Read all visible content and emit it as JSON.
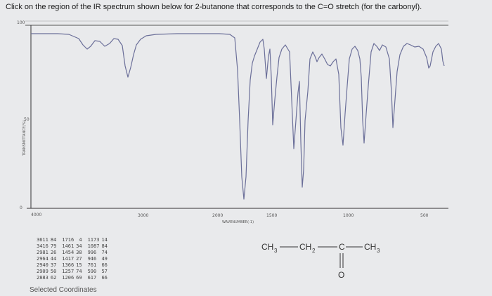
{
  "question": {
    "text": "Click on the region of the IR spectrum shown below for 2-butanone that corresponds to the C=O stretch (for the carbonyl)."
  },
  "spectrum": {
    "y_axis_title": "TRANSMITTANCE(%)",
    "y_ticks": [
      "100",
      "50",
      "0"
    ],
    "x_ticks": [
      "4000",
      "3000",
      "2000",
      "1500",
      "1000",
      "500"
    ],
    "x_axis_title": "WAVENUMBER(-1)",
    "line_color": "#6b6f99",
    "frame_color": "#333333"
  },
  "peak_table": {
    "rows": [
      [
        "3611",
        "84",
        "1716",
        "4",
        "1173",
        "14"
      ],
      [
        "3416",
        "79",
        "1461",
        "34",
        "1087",
        "84"
      ],
      [
        "2981",
        "26",
        "1454",
        "38",
        "996",
        "74"
      ],
      [
        "2964",
        "44",
        "1417",
        "27",
        "946",
        "49"
      ],
      [
        "2940",
        "37",
        "1366",
        "15",
        "761",
        "66"
      ],
      [
        "2909",
        "50",
        "1257",
        "74",
        "590",
        "57"
      ],
      [
        "2883",
        "62",
        "1206",
        "69",
        "617",
        "66"
      ]
    ]
  },
  "selected_coordinates_label": "Selected Coordinates",
  "molecule": {
    "ch3_left": "CH",
    "sub_left": "3",
    "ch2": "CH",
    "sub_mid": "2",
    "carbon": "C",
    "ch3_right": "CH",
    "sub_right": "3",
    "oxygen": "O"
  }
}
